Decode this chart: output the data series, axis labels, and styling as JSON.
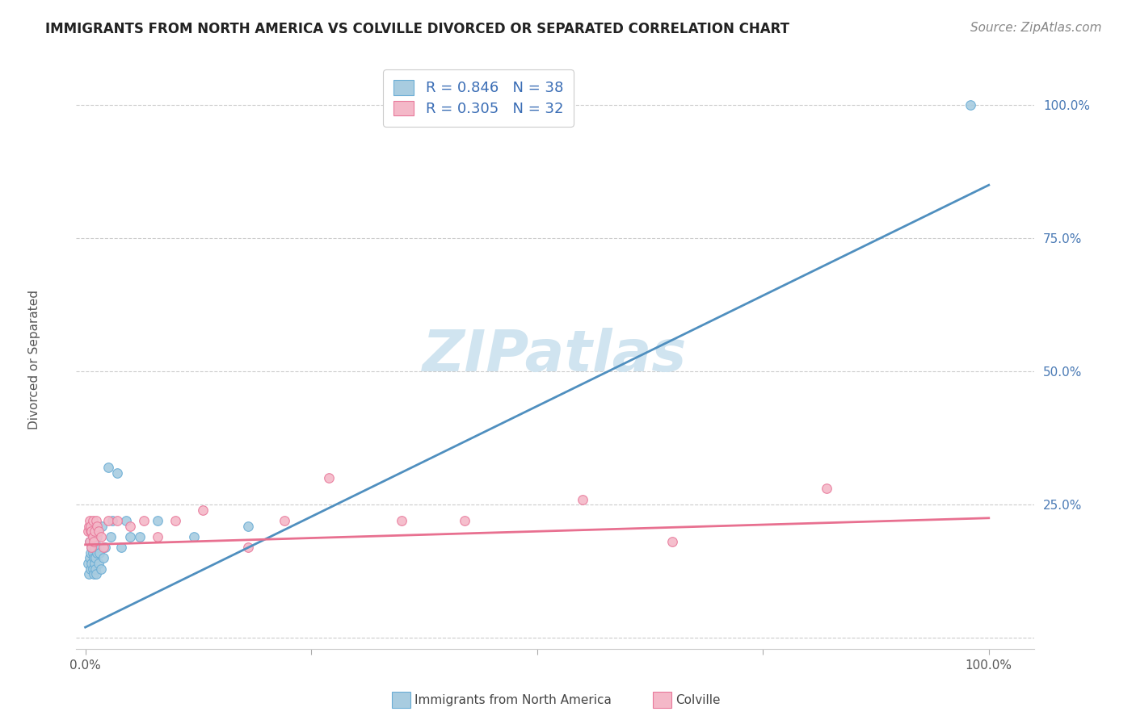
{
  "title": "IMMIGRANTS FROM NORTH AMERICA VS COLVILLE DIVORCED OR SEPARATED CORRELATION CHART",
  "source_text": "Source: ZipAtlas.com",
  "ylabel": "Divorced or Separated",
  "x_tick_labels": [
    "0.0%",
    "",
    "",
    "",
    "100.0%"
  ],
  "x_tick_values": [
    0.0,
    0.25,
    0.5,
    0.75,
    1.0
  ],
  "y_tick_labels": [
    "100.0%",
    "75.0%",
    "50.0%",
    "25.0%",
    ""
  ],
  "y_tick_values": [
    1.0,
    0.75,
    0.5,
    0.25,
    0.0
  ],
  "legend_labels": [
    "Immigrants from North America",
    "Colville"
  ],
  "R1": "0.846",
  "N1": "38",
  "R2": "0.305",
  "N2": "32",
  "color_blue": "#a8cce0",
  "color_blue_edge": "#6aadd5",
  "color_pink": "#f4b8c8",
  "color_pink_edge": "#e8789a",
  "color_line_blue": "#4f8fbf",
  "color_line_pink": "#e87090",
  "watermark_color": "#d0e4f0",
  "blue_scatter_x": [
    0.003,
    0.004,
    0.005,
    0.005,
    0.006,
    0.006,
    0.007,
    0.007,
    0.008,
    0.008,
    0.009,
    0.009,
    0.01,
    0.01,
    0.011,
    0.011,
    0.012,
    0.013,
    0.013,
    0.015,
    0.015,
    0.016,
    0.017,
    0.018,
    0.02,
    0.022,
    0.025,
    0.028,
    0.03,
    0.035,
    0.04,
    0.045,
    0.05,
    0.06,
    0.08,
    0.12,
    0.18,
    0.98
  ],
  "blue_scatter_y": [
    0.14,
    0.12,
    0.15,
    0.18,
    0.13,
    0.16,
    0.14,
    0.17,
    0.13,
    0.16,
    0.12,
    0.15,
    0.14,
    0.17,
    0.13,
    0.15,
    0.12,
    0.16,
    0.19,
    0.14,
    0.17,
    0.16,
    0.13,
    0.21,
    0.15,
    0.17,
    0.32,
    0.19,
    0.22,
    0.31,
    0.17,
    0.22,
    0.19,
    0.19,
    0.22,
    0.19,
    0.21,
    1.0
  ],
  "pink_scatter_x": [
    0.003,
    0.004,
    0.005,
    0.005,
    0.006,
    0.006,
    0.007,
    0.007,
    0.008,
    0.008,
    0.009,
    0.01,
    0.012,
    0.013,
    0.015,
    0.017,
    0.02,
    0.025,
    0.035,
    0.05,
    0.065,
    0.08,
    0.1,
    0.13,
    0.18,
    0.22,
    0.27,
    0.35,
    0.42,
    0.55,
    0.65,
    0.82
  ],
  "pink_scatter_y": [
    0.2,
    0.21,
    0.18,
    0.22,
    0.2,
    0.21,
    0.17,
    0.2,
    0.19,
    0.22,
    0.18,
    0.2,
    0.22,
    0.21,
    0.2,
    0.19,
    0.17,
    0.22,
    0.22,
    0.21,
    0.22,
    0.19,
    0.22,
    0.24,
    0.17,
    0.22,
    0.3,
    0.22,
    0.22,
    0.26,
    0.18,
    0.28
  ],
  "blue_line_x": [
    0.0,
    1.0
  ],
  "blue_line_y": [
    0.02,
    0.85
  ],
  "pink_line_x": [
    0.0,
    1.0
  ],
  "pink_line_y": [
    0.175,
    0.225
  ],
  "xlim": [
    -0.01,
    1.05
  ],
  "ylim": [
    -0.02,
    1.08
  ],
  "title_fontsize": 12,
  "axis_label_fontsize": 11,
  "tick_fontsize": 11,
  "legend_fontsize": 13,
  "source_fontsize": 11,
  "watermark_fontsize": 52,
  "watermark_text": "ZIPatlas"
}
